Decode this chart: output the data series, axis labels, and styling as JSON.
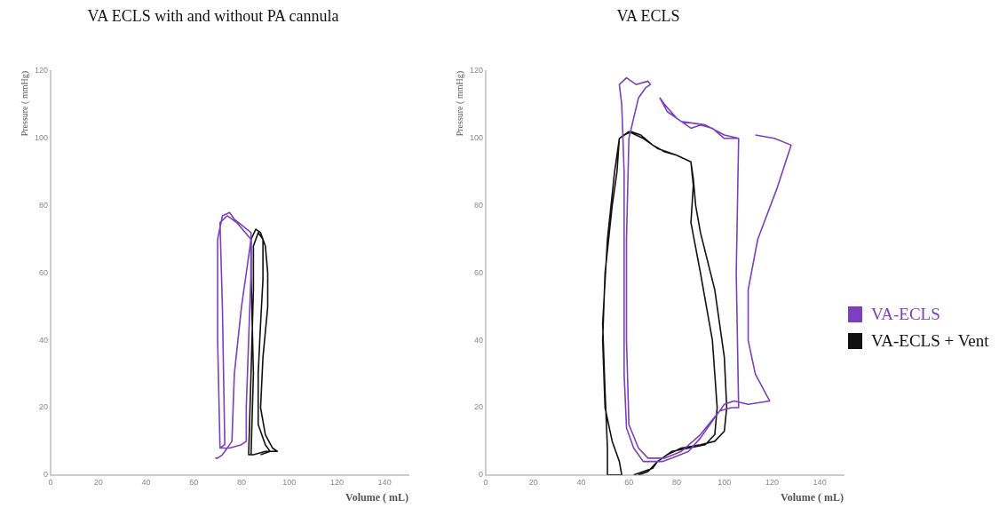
{
  "chart_data": [
    {
      "type": "line",
      "title": "VA ECLS with and without PA cannula",
      "xlabel": "Volume ( mL)",
      "ylabel": "Pressure ( mmHg)",
      "xlim": [
        0,
        150
      ],
      "xticks": [
        0,
        20,
        40,
        60,
        80,
        100,
        120,
        140
      ],
      "ylim": [
        0,
        120
      ],
      "yticks": [
        0,
        20,
        40,
        60,
        80,
        100,
        120
      ],
      "grid": false,
      "legend": false,
      "marker": "none",
      "line_style": "solid",
      "series": [
        {
          "color": "#7b3fbf",
          "x": [
            71,
            70,
            70,
            72,
            75,
            77,
            84,
            84,
            83,
            82,
            82,
            80,
            75,
            71,
            73,
            72,
            71,
            74,
            78,
            84,
            80,
            77,
            76,
            72,
            70,
            69
          ],
          "values": [
            8,
            40,
            70,
            77,
            78,
            76,
            72,
            60,
            40,
            20,
            10,
            9,
            8,
            8,
            9,
            50,
            75,
            77,
            75,
            70,
            50,
            30,
            10,
            6,
            5,
            5
          ]
        },
        {
          "color": "#111111",
          "x": [
            84,
            85,
            84,
            84,
            86,
            88,
            90,
            91,
            91,
            89,
            88,
            90,
            93,
            95,
            90,
            85,
            83,
            84,
            85,
            85,
            87,
            89,
            89,
            88,
            87,
            87,
            90,
            92,
            88
          ],
          "values": [
            6,
            30,
            60,
            70,
            73,
            72,
            68,
            60,
            50,
            35,
            20,
            12,
            8,
            7,
            7,
            6,
            6,
            30,
            55,
            68,
            72,
            70,
            58,
            45,
            30,
            15,
            9,
            7,
            6
          ]
        }
      ]
    },
    {
      "type": "line",
      "title": "VA ECLS",
      "xlabel": "Volume ( mL)",
      "ylabel": "Pressure ( mmHg)",
      "xlim": [
        0,
        150
      ],
      "xticks": [
        0,
        20,
        40,
        60,
        80,
        100,
        120,
        140
      ],
      "ylim": [
        0,
        120
      ],
      "yticks": [
        0,
        20,
        40,
        60,
        80,
        100,
        120
      ],
      "grid": false,
      "legend": "right",
      "marker": "none",
      "line_style": "solid",
      "series": [
        {
          "name": "VA-ECLS",
          "color": "#7b3fbf",
          "x": [
            113,
            121,
            128,
            122,
            114,
            110,
            110,
            113,
            119,
            110,
            104,
            100,
            96,
            90,
            85,
            78,
            74,
            66,
            62,
            59,
            58,
            58,
            58,
            57,
            56,
            59,
            63,
            68,
            69,
            67,
            64,
            60,
            59,
            59,
            60,
            64,
            68,
            75,
            82,
            90,
            98,
            103,
            106,
            105,
            106,
            100,
            95,
            90,
            86,
            80,
            75,
            73,
            76,
            82,
            92,
            100,
            106
          ],
          "values": [
            101,
            100,
            98,
            85,
            70,
            55,
            40,
            30,
            22,
            21,
            22,
            21,
            17,
            11,
            7,
            5,
            4,
            4,
            8,
            14,
            30,
            60,
            90,
            110,
            116,
            118,
            116,
            117,
            116,
            115,
            112,
            100,
            70,
            40,
            15,
            8,
            5,
            5,
            7,
            12,
            19,
            20,
            20,
            60,
            100,
            100,
            103,
            104,
            103,
            106,
            110,
            112,
            108,
            105,
            104,
            101,
            100
          ]
        },
        {
          "name": "VA-ECLS + Vent",
          "color": "#111111",
          "x": [
            62,
            66,
            70,
            72,
            76,
            82,
            90,
            96,
            100,
            101,
            100,
            96,
            90,
            88,
            87,
            86,
            80,
            75,
            70,
            65,
            61,
            58,
            56,
            55,
            53,
            50,
            49,
            50,
            53,
            56,
            57,
            51,
            51,
            50,
            49,
            51,
            54,
            56,
            60,
            66,
            72,
            80,
            86,
            87,
            86,
            90,
            95,
            97,
            96,
            92,
            85,
            78,
            72,
            68,
            64
          ],
          "values": [
            0,
            1,
            2,
            4,
            6,
            8,
            9,
            10,
            13,
            20,
            35,
            55,
            72,
            80,
            88,
            93,
            95,
            96,
            98,
            101,
            102,
            101,
            100,
            90,
            80,
            60,
            40,
            20,
            10,
            4,
            0,
            0,
            8,
            25,
            45,
            70,
            90,
            100,
            102,
            100,
            97,
            95,
            93,
            86,
            75,
            60,
            40,
            20,
            12,
            9,
            8,
            7,
            4,
            1,
            0
          ]
        }
      ]
    }
  ]
}
